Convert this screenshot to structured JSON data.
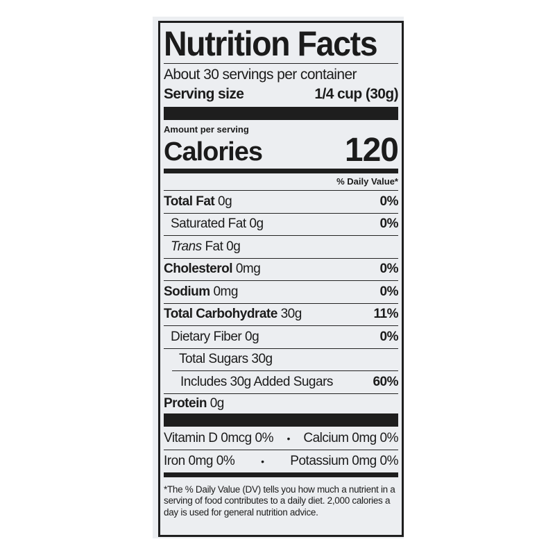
{
  "title": "Nutrition Facts",
  "servings_per_container": "About 30 servings per container",
  "serving_size": {
    "label": "Serving size",
    "value": "1/4 cup (30g)"
  },
  "amount_per_serving": "Amount per serving",
  "calories": {
    "label": "Calories",
    "value": "120"
  },
  "daily_value_header": "% Daily Value*",
  "nutrients": [
    {
      "name": "Total Fat",
      "amount": "0g",
      "dv": "0%"
    },
    {
      "name": "Saturated Fat",
      "amount": "0g",
      "dv": "0%"
    },
    {
      "name": "Trans",
      "suffix": "Fat 0g",
      "dv": ""
    },
    {
      "name": "Cholesterol",
      "amount": "0mg",
      "dv": "0%"
    },
    {
      "name": "Sodium",
      "amount": "0mg",
      "dv": "0%"
    },
    {
      "name": "Total Carbohydrate",
      "amount": "30g",
      "dv": "11%"
    },
    {
      "name": "Dietary Fiber",
      "amount": "0g",
      "dv": "0%"
    },
    {
      "name": "Total Sugars",
      "amount": "30g",
      "dv": ""
    },
    {
      "name": "Includes 30g Added Sugars",
      "amount": "",
      "dv": "60%"
    },
    {
      "name": "Protein",
      "amount": "0g",
      "dv": ""
    }
  ],
  "vitamins": [
    {
      "left": "Vitamin D 0mcg 0%",
      "right": "Calcium 0mg 0%"
    },
    {
      "left": "Iron 0mg 0%",
      "right": "Potassium 0mg 0%"
    }
  ],
  "separator": "•",
  "footnote": "*The % Daily Value (DV) tells you how much a nutrient in a serving of food contributes to a daily diet. 2,000 calories a day is used for general nutrition advice."
}
